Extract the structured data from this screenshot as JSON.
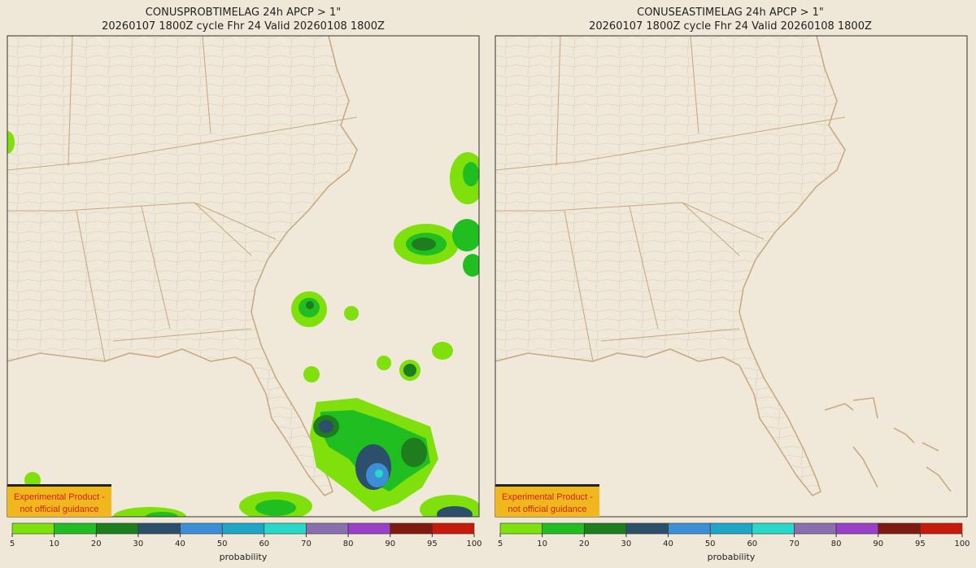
{
  "panels": [
    {
      "title": "CONUSPROBTIMELAG 24h APCP > 1\"",
      "subtitle": "20260107 1800Z cycle Fhr 24 Valid 20260108 1800Z",
      "badge": [
        "Experimental Product -",
        "not official guidance"
      ]
    },
    {
      "title": "CONUSEASTIMELAG 24h APCP > 1\"",
      "subtitle": "20260107 1800Z cycle Fhr 24 Valid 20260108 1800Z",
      "badge": [
        "Experimental Product -",
        "not official guidance"
      ]
    }
  ],
  "colorbar": {
    "label": "probability",
    "ticks": [
      5,
      10,
      20,
      30,
      40,
      50,
      60,
      70,
      80,
      90,
      95,
      100
    ],
    "colors": [
      "#80e00c",
      "#20be20",
      "#1e7e1e",
      "#2c4f6b",
      "#3a8fd6",
      "#1ea6c8",
      "#28d8c8",
      "#8a6fb0",
      "#9a3fc8",
      "#7e1a0e",
      "#c81a0a"
    ]
  }
}
